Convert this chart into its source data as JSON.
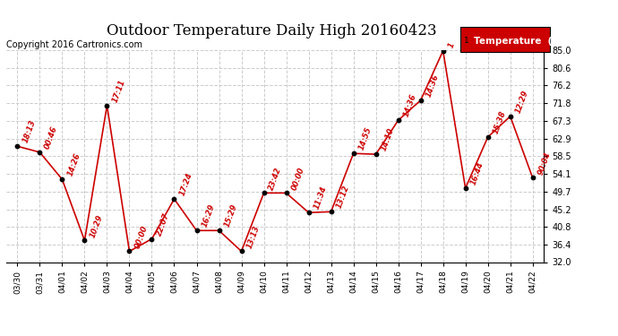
{
  "title": "Outdoor Temperature Daily High 20160423",
  "copyright": "Copyright 2016 Cartronics.com",
  "legend_label": "Temperature  (°F)",
  "x_labels": [
    "03/30",
    "03/31",
    "04/01",
    "04/02",
    "04/03",
    "04/04",
    "04/05",
    "04/06",
    "04/07",
    "04/08",
    "04/09",
    "04/10",
    "04/11",
    "04/12",
    "04/13",
    "04/14",
    "04/15",
    "04/16",
    "04/17",
    "04/18",
    "04/19",
    "04/20",
    "04/21",
    "04/22"
  ],
  "y_values": [
    61.0,
    59.5,
    52.7,
    37.4,
    71.2,
    34.7,
    37.8,
    47.8,
    39.9,
    39.9,
    34.7,
    49.3,
    49.3,
    44.4,
    44.6,
    59.2,
    59.0,
    67.5,
    72.5,
    84.9,
    50.5,
    63.3,
    68.5,
    53.1
  ],
  "annotations": [
    "18:13",
    "00:46",
    "14:26",
    "10:29",
    "17:11",
    "00:00",
    "22:07",
    "17:24",
    "16:29",
    "15:29",
    "13:13",
    "23:42",
    "00:00",
    "11:34",
    "13:12",
    "14:55",
    "14:10",
    "14:36",
    "14:36",
    "1",
    "16:44",
    "15:38",
    "12:29",
    "90:04"
  ],
  "ylim": [
    32.0,
    85.0
  ],
  "yticks": [
    32.0,
    36.4,
    40.8,
    45.2,
    49.7,
    54.1,
    58.5,
    62.9,
    67.3,
    71.8,
    76.2,
    80.6,
    85.0
  ],
  "line_color": "#cc0000",
  "marker_color": "#000000",
  "bg_color": "#ffffff",
  "grid_color": "#cccccc",
  "annotation_color": "#cc0000",
  "title_fontsize": 12,
  "copyright_fontsize": 7,
  "legend_bg": "#cc0000",
  "legend_text_color": "#ffffff"
}
